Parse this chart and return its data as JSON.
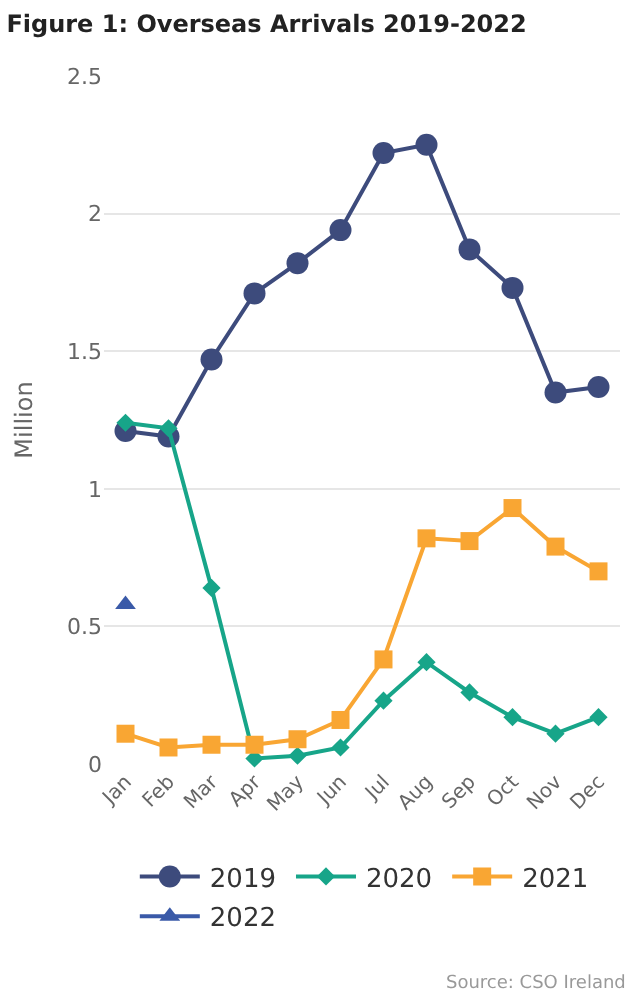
{
  "chart_data": {
    "type": "line",
    "title": "Figure 1: Overseas Arrivals 2019-2022",
    "ylabel": "Million",
    "categories": [
      "Jan",
      "Feb",
      "Mar",
      "Apr",
      "May",
      "Jun",
      "Jul",
      "Aug",
      "Sep",
      "Oct",
      "Nov",
      "Dec"
    ],
    "series": [
      {
        "name": "2019",
        "color": "#3d4b7c",
        "marker": "circle",
        "values": [
          1.21,
          1.19,
          1.47,
          1.71,
          1.82,
          1.94,
          2.22,
          2.25,
          1.87,
          1.73,
          1.35,
          1.37
        ]
      },
      {
        "name": "2020",
        "color": "#17a589",
        "marker": "diamond",
        "values": [
          1.24,
          1.22,
          0.64,
          0.02,
          0.03,
          0.06,
          0.23,
          0.37,
          0.26,
          0.17,
          0.11,
          0.17
        ]
      },
      {
        "name": "2021",
        "color": "#f9a633",
        "marker": "square",
        "values": [
          0.11,
          0.06,
          0.07,
          0.07,
          0.09,
          0.16,
          0.38,
          0.82,
          0.81,
          0.93,
          0.79,
          0.7
        ]
      },
      {
        "name": "2022",
        "color": "#3a5aa8",
        "marker": "triangle",
        "values": [
          0.58,
          null,
          null,
          null,
          null,
          null,
          null,
          null,
          null,
          null,
          null,
          null
        ]
      }
    ],
    "ylim": [
      0,
      2.5
    ],
    "yticks": [
      0,
      0.5,
      1,
      1.5,
      2,
      2.5
    ],
    "grid": "y",
    "legend": "bottom",
    "line_style": "solid",
    "annotations": [
      "Source: CSO Ireland"
    ]
  }
}
